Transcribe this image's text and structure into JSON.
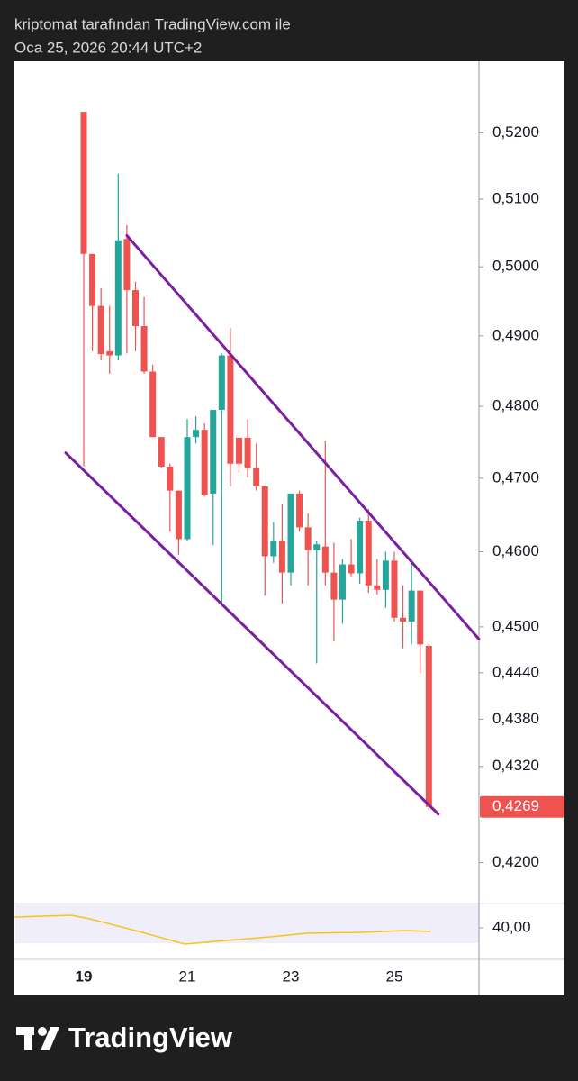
{
  "header": {
    "title": "kriptomat tarafından TradingView.com ile",
    "subtitle": "Oca 25, 2026 20:44 UTC+2"
  },
  "footer": {
    "brand": "TradingView"
  },
  "chart_data": [
    {
      "type": "candlestick",
      "categories": [
        "19",
        null,
        null,
        null,
        null,
        null,
        null,
        null,
        null,
        null,
        null,
        null,
        "21",
        null,
        null,
        null,
        null,
        null,
        null,
        null,
        null,
        null,
        null,
        null,
        "23",
        null,
        null,
        null,
        null,
        null,
        null,
        null,
        null,
        null,
        null,
        null,
        "25",
        null,
        null,
        null,
        null
      ],
      "open": [
        0.5232,
        0.5019,
        0.4943,
        0.4878,
        0.4872,
        0.5041,
        0.4966,
        0.4914,
        0.4849,
        0.4757,
        0.4716,
        0.4683,
        0.4617,
        0.4757,
        0.4767,
        0.4679,
        0.4795,
        0.4872,
        0.4756,
        0.4756,
        0.4714,
        0.4689,
        0.4594,
        0.4615,
        0.4572,
        0.4679,
        0.4633,
        0.4602,
        0.4607,
        0.4572,
        0.4536,
        0.4583,
        0.4571,
        0.4642,
        0.4555,
        0.4549,
        0.4588,
        0.4512,
        0.4507,
        0.4548,
        0.4475
      ],
      "high": [
        0.5232,
        0.5019,
        0.4969,
        0.4943,
        0.5138,
        0.5061,
        0.4978,
        0.4956,
        0.4859,
        0.4757,
        0.472,
        0.4683,
        0.4782,
        0.4786,
        0.4776,
        0.4795,
        0.4875,
        0.4911,
        0.4756,
        0.4782,
        0.4748,
        0.4689,
        0.464,
        0.4664,
        0.4679,
        0.4683,
        0.4652,
        0.4615,
        0.4752,
        0.4612,
        0.459,
        0.4617,
        0.4646,
        0.4658,
        0.459,
        0.46,
        0.46,
        0.4555,
        0.459,
        0.4548,
        0.4478
      ],
      "low": [
        0.4716,
        0.4878,
        0.4865,
        0.4846,
        0.4865,
        0.4875,
        0.4878,
        0.4846,
        0.4757,
        0.4714,
        0.4627,
        0.4596,
        0.4615,
        0.4748,
        0.4675,
        0.4609,
        0.4529,
        0.4689,
        0.4708,
        0.4701,
        0.4683,
        0.4541,
        0.4585,
        0.4531,
        0.4555,
        0.4627,
        0.4555,
        0.4452,
        0.4555,
        0.4481,
        0.4504,
        0.4567,
        0.4557,
        0.4545,
        0.4543,
        0.4525,
        0.4507,
        0.4472,
        0.4477,
        0.4439,
        0.4265
      ],
      "close": [
        0.5019,
        0.4943,
        0.4874,
        0.4872,
        0.5039,
        0.4966,
        0.4914,
        0.4849,
        0.4757,
        0.4716,
        0.4683,
        0.4617,
        0.4757,
        0.4767,
        0.4677,
        0.4795,
        0.4872,
        0.472,
        0.472,
        0.4714,
        0.4689,
        0.4594,
        0.4615,
        0.4572,
        0.4679,
        0.4633,
        0.4602,
        0.461,
        0.4572,
        0.4536,
        0.4583,
        0.4571,
        0.4642,
        0.4555,
        0.4549,
        0.4588,
        0.4512,
        0.4507,
        0.4548,
        0.4477,
        0.4269
      ],
      "up_color": "#26a69a",
      "down_color": "#ef5350",
      "log_scale": true,
      "ylim": [
        0.415,
        0.531
      ],
      "yticks": [
        {
          "value": 0.52,
          "label": "0,5200"
        },
        {
          "value": 0.51,
          "label": "0,5100"
        },
        {
          "value": 0.5,
          "label": "0,5000"
        },
        {
          "value": 0.49,
          "label": "0,4900"
        },
        {
          "value": 0.48,
          "label": "0,4800"
        },
        {
          "value": 0.47,
          "label": "0,4700"
        },
        {
          "value": 0.46,
          "label": "0,4600"
        },
        {
          "value": 0.45,
          "label": "0,4500"
        },
        {
          "value": 0.444,
          "label": "0,4440"
        },
        {
          "value": 0.438,
          "label": "0,4380"
        },
        {
          "value": 0.432,
          "label": "0,4320"
        },
        {
          "value": 0.42,
          "label": "0,4200"
        }
      ],
      "last_price": {
        "value": 0.4269,
        "label": "0,4269",
        "color": "#ef5350"
      },
      "trendlines": [
        {
          "color": "#7b1fa2",
          "start": {
            "x": 5.0,
            "value": 0.5046
          },
          "end": {
            "x": 45.8,
            "value": 0.4484
          }
        },
        {
          "color": "#7b1fa2",
          "start": {
            "x": -2.09,
            "value": 0.4735
          },
          "end": {
            "x": 41.1,
            "value": 0.426
          }
        }
      ]
    },
    {
      "type": "line",
      "x": [
        -8,
        -1.4,
        0.7,
        6,
        11.7,
        15.4,
        21.6,
        25.8,
        32.1,
        37.3,
        40.2
      ],
      "values": [
        46,
        47,
        45,
        38.5,
        31,
        32.5,
        35,
        37,
        37.5,
        38.5,
        38
      ],
      "color": "#f5c518",
      "ylim": [
        31.5,
        53.5
      ],
      "yticks": [
        {
          "value": 40,
          "label": "40,00"
        }
      ]
    }
  ]
}
